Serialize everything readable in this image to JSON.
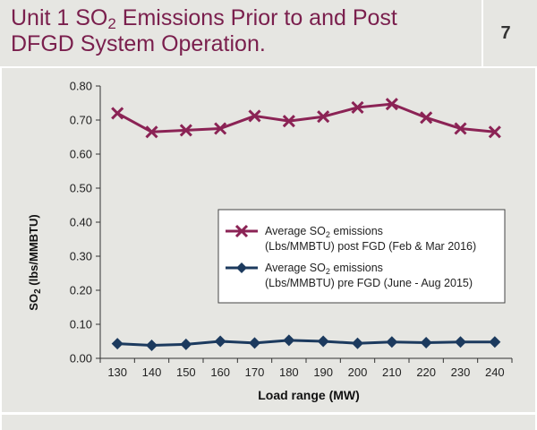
{
  "header": {
    "title_line1_pre": "Unit 1 SO",
    "title_line1_sub": "2",
    "title_line1_post": " Emissions Prior to and Post",
    "title_line2": "DFGD System Operation.",
    "page_number": "7"
  },
  "colors": {
    "panel_bg": "#e6e6e2",
    "title": "#7a1f4d",
    "post_series": "#8b2355",
    "pre_series": "#1c3a5e"
  },
  "chart_data": {
    "type": "line",
    "title": "",
    "xlabel": "Load range (MW)",
    "ylabel_pre": "SO",
    "ylabel_sub": "2",
    "ylabel_post": " (lbs/MMBTU)",
    "x": [
      130,
      140,
      150,
      160,
      170,
      180,
      190,
      200,
      210,
      220,
      230,
      240
    ],
    "ylim": [
      0,
      0.8
    ],
    "yticks": [
      "0.00",
      "0.10",
      "0.20",
      "0.30",
      "0.40",
      "0.50",
      "0.60",
      "0.70",
      "0.80"
    ],
    "grid": false,
    "legend_position": "center-right",
    "series": [
      {
        "legend_line1_pre": "Average SO",
        "legend_line1_sub": "2",
        "legend_line1_post": " emissions",
        "legend_line2": "(Lbs/MMBTU) post FGD (Feb & Mar 2016)",
        "marker": "x",
        "color": "#8b2355",
        "values": [
          0.72,
          0.665,
          0.67,
          0.675,
          0.712,
          0.697,
          0.71,
          0.737,
          0.747,
          0.707,
          0.675,
          0.665
        ]
      },
      {
        "legend_line1_pre": "Average SO",
        "legend_line1_sub": "2",
        "legend_line1_post": " emissions",
        "legend_line2": "(Lbs/MMBTU) pre FGD (June - Aug 2015)",
        "marker": "diamond",
        "color": "#1c3a5e",
        "values": [
          0.043,
          0.038,
          0.041,
          0.05,
          0.045,
          0.053,
          0.05,
          0.044,
          0.048,
          0.046,
          0.048,
          0.048
        ]
      }
    ]
  }
}
